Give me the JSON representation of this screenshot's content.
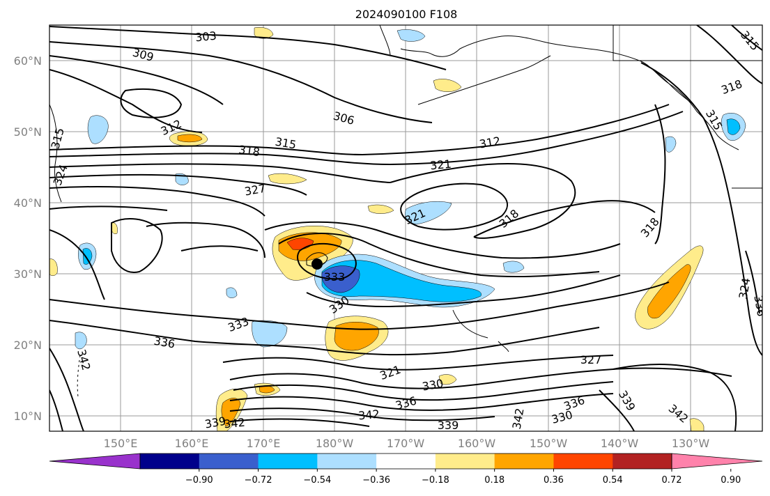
{
  "title": "2024090100 F108",
  "lat_labels": [
    "60°N",
    "50°N",
    "40°N",
    "30°N",
    "20°N",
    "10°N"
  ],
  "lon_labels": [
    "150°E",
    "160°E",
    "170°E",
    "180°W",
    "170°W",
    "160°W",
    "150°W",
    "140°W",
    "130°W"
  ],
  "contour_labels": [
    "303",
    "309",
    "312",
    "315",
    "318",
    "324",
    "327",
    "306",
    "315",
    "312",
    "321",
    "321",
    "318",
    "318",
    "333",
    "330",
    "333",
    "336",
    "342",
    "321",
    "330",
    "336",
    "342",
    "327",
    "339",
    "339",
    "342",
    "336",
    "330",
    "342",
    "342",
    "339",
    "315",
    "318",
    "324",
    "315",
    "336"
  ],
  "colorbar": {
    "ticks": [
      "−0.90",
      "−0.72",
      "−0.54",
      "−0.36",
      "−0.18",
      "0.18",
      "0.36",
      "0.54",
      "0.72",
      "0.90"
    ],
    "colors": [
      "#9932CC",
      "#00008B",
      "#3A5FCD",
      "#00BFFF",
      "#ADDFFF",
      "#FFFFFF",
      "#FFEC8B",
      "#FFA500",
      "#FF4500",
      "#B22222",
      "#FF82AB"
    ]
  }
}
